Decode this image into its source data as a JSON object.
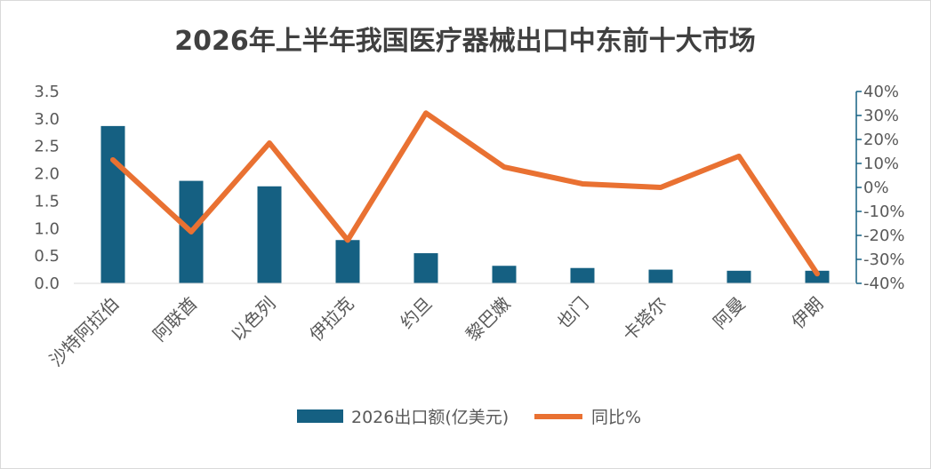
{
  "chart_data": {
    "type": "bar+line",
    "title": "2026年上半年我国医疗器械出口中东前十大市场",
    "categories": [
      "沙特阿拉伯",
      "阿联酋",
      "以色列",
      "伊拉克",
      "约旦",
      "黎巴嫩",
      "也门",
      "卡塔尔",
      "阿曼",
      "伊朗"
    ],
    "series": [
      {
        "name": "2026出口额(亿美元)",
        "type": "bar",
        "axis": "left",
        "color": "#156082",
        "values": [
          2.87,
          1.87,
          1.77,
          0.79,
          0.55,
          0.32,
          0.28,
          0.25,
          0.23,
          0.23
        ]
      },
      {
        "name": "同比%",
        "type": "line",
        "axis": "right",
        "color": "#E97132",
        "values": [
          11.5,
          -18.5,
          18.5,
          -22,
          31,
          8.5,
          1.5,
          0,
          13,
          -36
        ]
      }
    ],
    "y_left": {
      "min": 0,
      "max": 3.5,
      "ticks": [
        "0.0",
        "0.5",
        "1.0",
        "1.5",
        "2.0",
        "2.5",
        "3.0",
        "3.5"
      ]
    },
    "y_right": {
      "min": -40,
      "max": 40,
      "ticks": [
        "-40%",
        "-30%",
        "-20%",
        "-10%",
        "0%",
        "10%",
        "20%",
        "30%",
        "40%"
      ]
    },
    "grid": false,
    "legend": "bottom"
  }
}
